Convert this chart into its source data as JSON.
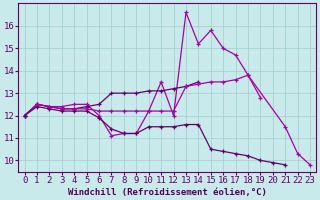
{
  "xlabel": "Windchill (Refroidissement éolien,°C)",
  "x": [
    0,
    1,
    2,
    3,
    4,
    5,
    6,
    7,
    8,
    9,
    10,
    11,
    12,
    13,
    14,
    15,
    16,
    17,
    18,
    19,
    20,
    21,
    22,
    23
  ],
  "line1": [
    12.0,
    12.5,
    12.4,
    12.4,
    12.5,
    12.5,
    12.0,
    11.1,
    11.2,
    11.2,
    12.2,
    13.5,
    12.0,
    16.6,
    15.2,
    15.8,
    15.0,
    14.7,
    13.8,
    null,
    null,
    11.5,
    10.3,
    9.8
  ],
  "line2": [
    12.0,
    12.5,
    12.4,
    12.3,
    12.3,
    12.4,
    12.5,
    13.0,
    13.0,
    13.0,
    13.1,
    13.1,
    13.2,
    13.3,
    13.5,
    null,
    null,
    null,
    null,
    null,
    null,
    null,
    null,
    null
  ],
  "line3": [
    12.0,
    12.5,
    12.4,
    12.3,
    12.3,
    12.3,
    12.2,
    12.2,
    12.2,
    12.2,
    12.2,
    12.2,
    12.2,
    13.3,
    13.4,
    13.5,
    13.5,
    13.6,
    13.8,
    12.8,
    null,
    null,
    null,
    null
  ],
  "line4": [
    12.0,
    12.4,
    12.3,
    12.2,
    12.2,
    12.2,
    11.9,
    11.4,
    11.2,
    11.2,
    11.5,
    11.5,
    11.5,
    11.6,
    11.6,
    10.5,
    10.4,
    10.3,
    10.2,
    10.0,
    9.9,
    9.8,
    null,
    null
  ],
  "bg_color": "#c8eaea",
  "grid_color": "#9ecece",
  "line_color1": "#aa00aa",
  "line_color2": "#660066",
  "ylim": [
    9.5,
    17.0
  ],
  "xlim": [
    -0.5,
    23.5
  ],
  "yticks": [
    10,
    11,
    12,
    13,
    14,
    15,
    16
  ],
  "xticks": [
    0,
    1,
    2,
    3,
    4,
    5,
    6,
    7,
    8,
    9,
    10,
    11,
    12,
    13,
    14,
    15,
    16,
    17,
    18,
    19,
    20,
    21,
    22,
    23
  ],
  "fontsize": 6.5,
  "marker": "+"
}
